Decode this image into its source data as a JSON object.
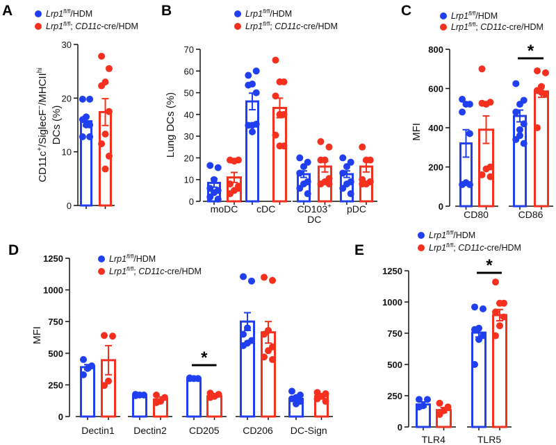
{
  "colors": {
    "wt": "#1f3ff0",
    "ko": "#f5301e",
    "axis": "#111111"
  },
  "legend": {
    "wt": {
      "gene": "Lrp1",
      "sup": "fl/fl",
      "rest": "/HDM"
    },
    "ko": {
      "gene": "Lrp1",
      "sup": "fl/fl",
      "sep": "; ",
      "cre": "CD11c",
      "rest": "-cre/HDM"
    }
  },
  "chart_data": [
    {
      "panel": "A",
      "type": "bar",
      "ylabel": [
        "CD11c",
        "+",
        "/SiglecF",
        "−",
        "/MHCII",
        "hi",
        "DCs (%)"
      ],
      "ylim": [
        0,
        30
      ],
      "yticks": [
        0,
        10,
        20,
        30
      ],
      "groups": [
        {
          "label": "",
          "series": [
            {
              "name": "wt",
              "mean": 15.7,
              "sem": 0.9,
              "points": [
                19.8,
                19.8,
                16.5,
                16,
                15,
                15,
                12.8,
                12.8
              ]
            },
            {
              "name": "ko",
              "mean": 17.4,
              "sem": 2.5,
              "points": [
                27.8,
                25.5,
                23,
                22.3,
                17.5,
                13.3,
                11.5,
                9.2,
                6.8
              ]
            }
          ]
        }
      ]
    },
    {
      "panel": "B",
      "type": "bar",
      "ylabel": [
        "Lung DCs (%)"
      ],
      "ylim": [
        0,
        70
      ],
      "yticks": [
        0,
        10,
        20,
        30,
        40,
        50,
        60,
        70
      ],
      "groups": [
        {
          "label": "moDC",
          "series": [
            {
              "name": "wt",
              "mean": 8.5,
              "sem": 2,
              "points": [
                16.5,
                15.5,
                10,
                6,
                5,
                4,
                2,
                1
              ]
            },
            {
              "name": "ko",
              "mean": 11,
              "sem": 2.3,
              "points": [
                19,
                19,
                18.5,
                8,
                6,
                5,
                3.5,
                7
              ]
            }
          ]
        },
        {
          "label": "cDC",
          "series": [
            {
              "name": "wt",
              "mean": 46,
              "sem": 3.8,
              "points": [
                58,
                60,
                54,
                53.5,
                50,
                35,
                35,
                35.5,
                32
              ]
            },
            {
              "name": "ko",
              "mean": 43,
              "sem": 4.5,
              "points": [
                65,
                55,
                55,
                48.5,
                40,
                40,
                30.5,
                25.5,
                25.5
              ]
            }
          ]
        },
        {
          "label": "CD103",
          "label_sup": "+",
          "label_line2": "DC",
          "series": [
            {
              "name": "wt",
              "mean": 12.5,
              "sem": 1.5,
              "points": [
                20,
                18,
                16,
                13,
                9,
                8,
                6,
                3.5
              ]
            },
            {
              "name": "ko",
              "mean": 16,
              "sem": 2.5,
              "points": [
                27.5,
                25,
                19,
                19,
                10.5,
                9,
                8,
                8
              ]
            }
          ]
        },
        {
          "label": "pDC",
          "series": [
            {
              "name": "wt",
              "mean": 12.5,
              "sem": 1.5,
              "points": [
                20,
                18,
                16,
                13,
                9,
                8,
                6,
                3.5
              ]
            },
            {
              "name": "ko",
              "mean": 16,
              "sem": 2.5,
              "points": [
                25,
                19,
                19,
                10,
                9,
                8,
                8,
                9
              ]
            }
          ]
        }
      ]
    },
    {
      "panel": "C",
      "type": "bar",
      "ylabel": [
        "MFI"
      ],
      "ylim": [
        0,
        800
      ],
      "yticks": [
        0,
        200,
        400,
        600,
        800
      ],
      "groups": [
        {
          "label": "CD80",
          "series": [
            {
              "name": "wt",
              "mean": 320,
              "sem": 70,
              "points": [
                545,
                520,
                520,
                480,
                370,
                120,
                110,
                110
              ]
            },
            {
              "name": "ko",
              "mean": 390,
              "sem": 70,
              "points": [
                700,
                530,
                520,
                525,
                200,
                190,
                160,
                150
              ]
            }
          ]
        },
        {
          "label": "CD86",
          "significance": "*",
          "series": [
            {
              "name": "wt",
              "mean": 460,
              "sem": 30,
              "points": [
                625,
                540,
                520,
                480,
                420,
                390,
                340,
                320,
                360
              ]
            },
            {
              "name": "ko",
              "mean": 585,
              "sem": 30,
              "points": [
                690,
                680,
                610,
                590,
                570,
                580,
                400
              ]
            }
          ]
        }
      ]
    },
    {
      "panel": "D",
      "type": "bar",
      "ylabel": [
        "MFI"
      ],
      "ylim": [
        0,
        1250
      ],
      "yticks": [
        0,
        250,
        500,
        750,
        1000,
        1250
      ],
      "groups": [
        {
          "label": "Dectin1",
          "series": [
            {
              "name": "wt",
              "mean": 390,
              "sem": 20,
              "points": [
                450,
                400,
                380,
                330
              ]
            },
            {
              "name": "ko",
              "mean": 445,
              "sem": 115,
              "points": [
                640,
                635,
                280,
                245
              ]
            }
          ]
        },
        {
          "label": "Dectin2",
          "series": [
            {
              "name": "wt",
              "mean": 170,
              "sem": 3,
              "points": [
                175,
                170,
                170,
                165
              ]
            },
            {
              "name": "ko",
              "mean": 135,
              "sem": 20,
              "points": [
                170,
                150,
                120,
                110
              ]
            }
          ]
        },
        {
          "label": "CD205",
          "significance": "*",
          "series": [
            {
              "name": "wt",
              "mean": 300,
              "sem": 2,
              "points": [
                305,
                300,
                300,
                300
              ]
            },
            {
              "name": "ko",
              "mean": 160,
              "sem": 10,
              "points": [
                185,
                175,
                160,
                150
              ]
            }
          ]
        },
        {
          "label": "CD206",
          "series": [
            {
              "name": "wt",
              "mean": 750,
              "sem": 70,
              "points": [
                1105,
                1070,
                700,
                650,
                600,
                580,
                560
              ]
            },
            {
              "name": "ko",
              "mean": 665,
              "sem": 85,
              "points": [
                1100,
                1075,
                680,
                650,
                550,
                520,
                470,
                450
              ]
            }
          ]
        },
        {
          "label": "DC-Sign",
          "series": [
            {
              "name": "wt",
              "mean": 140,
              "sem": 10,
              "points": [
                200,
                170,
                150,
                140,
                120,
                100
              ]
            },
            {
              "name": "ko",
              "mean": 160,
              "sem": 12,
              "points": [
                190,
                180,
                160,
                140,
                120
              ]
            }
          ]
        }
      ]
    },
    {
      "panel": "E",
      "type": "bar",
      "ylabel": [],
      "ylim": [
        0,
        1250
      ],
      "yticks": [
        0,
        250,
        500,
        750,
        1000,
        1250
      ],
      "groups": [
        {
          "label": "TLR4",
          "series": [
            {
              "name": "wt",
              "mean": 180,
              "sem": 20,
              "points": [
                220,
                220,
                170,
                160
              ]
            },
            {
              "name": "ko",
              "mean": 135,
              "sem": 20,
              "points": [
                190,
                160,
                130,
                100
              ]
            }
          ]
        },
        {
          "label": "TLR5",
          "significance": "*",
          "series": [
            {
              "name": "wt",
              "mean": 755,
              "sem": 35,
              "points": [
                960,
                945,
                790,
                780,
                730,
                700,
                500
              ]
            },
            {
              "name": "ko",
              "mean": 895,
              "sem": 45,
              "points": [
                1160,
                990,
                990,
                920,
                880,
                810,
                730
              ]
            }
          ]
        }
      ]
    }
  ]
}
